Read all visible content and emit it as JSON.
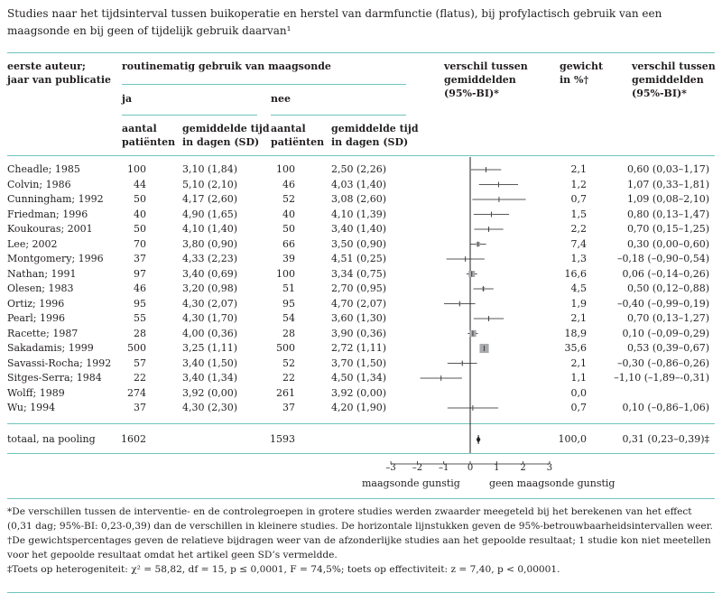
{
  "title": "Studies naar het tijdsinterval tussen buikoperatie en herstel van darmfunctie (flatus), bij profylactisch gebruik van een maagsonde en bij geen of tijdelijk gebruik daarvan¹",
  "headers": {
    "author": "eerste auteur;",
    "author2": "jaar van publicatie",
    "group": "routinematig gebruik van maagsonde",
    "ja": "ja",
    "nee": "nee",
    "n1": "aantal",
    "n2": "patiënten",
    "t1": "gemiddelde tijd",
    "t2": "in dagen (SD)",
    "diff1": "verschil tussen",
    "diff2": "gemiddelden",
    "diff3": "(95%-BI)*",
    "w1": "gewicht",
    "w2": "in %†"
  },
  "rows": [
    {
      "study": "Cheadle; 1985",
      "ja_n": "100",
      "ja_mean": "3,10 (1,84)",
      "nee_n": "100",
      "nee_mean": "2,50 (2,26)",
      "weight": "2,1",
      "ci_text": "0,60 (0,03–1,17)"
    },
    {
      "study": "Colvin; 1986",
      "ja_n": "44",
      "ja_mean": "5,10 (2,10)",
      "nee_n": "46",
      "nee_mean": "4,03 (1,40)",
      "weight": "1,2",
      "ci_text": "1,07 (0,33–1,81)"
    },
    {
      "study": "Cunningham; 1992",
      "ja_n": "50",
      "ja_mean": "4,17 (2,60)",
      "nee_n": "52",
      "nee_mean": "3,08 (2,60)",
      "weight": "0,7",
      "ci_text": "1,09 (0,08–2,10)"
    },
    {
      "study": "Friedman; 1996",
      "ja_n": "40",
      "ja_mean": "4,90 (1,65)",
      "nee_n": "40",
      "nee_mean": "4,10 (1,39)",
      "weight": "1,5",
      "ci_text": "0,80 (0,13–1,47)"
    },
    {
      "study": "Koukouras; 2001",
      "ja_n": "50",
      "ja_mean": "4,10 (1,40)",
      "nee_n": "50",
      "nee_mean": "3,40 (1,40)",
      "weight": "2,2",
      "ci_text": "0,70 (0,15–1,25)"
    },
    {
      "study": "Lee; 2002",
      "ja_n": "70",
      "ja_mean": "3,80 (0,90)",
      "nee_n": "66",
      "nee_mean": "3,50 (0,90)",
      "weight": "7,4",
      "ci_text": "0,30 (0,00–0,60)"
    },
    {
      "study": "Montgomery; 1996",
      "ja_n": "37",
      "ja_mean": "4,33 (2,23)",
      "nee_n": "39",
      "nee_mean": "4,51 (0,25)",
      "weight": "1,3",
      "ci_text": "–0,18 (–0,90–0,54)"
    },
    {
      "study": "Nathan; 1991",
      "ja_n": "97",
      "ja_mean": "3,40 (0,69)",
      "nee_n": "100",
      "nee_mean": "3,34 (0,75)",
      "weight": "16,6",
      "ci_text": "0,06 (–0,14–0,26)"
    },
    {
      "study": "Olesen; 1983",
      "ja_n": "46",
      "ja_mean": "3,20 (0,98)",
      "nee_n": "51",
      "nee_mean": "2,70 (0,95)",
      "weight": "4,5",
      "ci_text": "0,50 (0,12–0,88)"
    },
    {
      "study": "Ortiz; 1996",
      "ja_n": "95",
      "ja_mean": "4,30 (2,07)",
      "nee_n": "95",
      "nee_mean": "4,70 (2,07)",
      "weight": "1,9",
      "ci_text": "–0,40 (–0,99–0,19)"
    },
    {
      "study": "Pearl; 1996",
      "ja_n": "55",
      "ja_mean": "4,30 (1,70)",
      "nee_n": "54",
      "nee_mean": "3,60 (1,30)",
      "weight": "2,1",
      "ci_text": "0,70 (0,13–1,27)"
    },
    {
      "study": "Racette; 1987",
      "ja_n": "28",
      "ja_mean": "4,00 (0,36)",
      "nee_n": "28",
      "nee_mean": "3,90 (0,36)",
      "weight": "18,9",
      "ci_text": "0,10 (–0,09–0,29)"
    },
    {
      "study": "Sakadamis; 1999",
      "ja_n": "500",
      "ja_mean": "3,25 (1,11)",
      "nee_n": "500",
      "nee_mean": "2,72 (1,11)",
      "weight": "35,6",
      "ci_text": "0,53 (0,39–0,67)"
    },
    {
      "study": "Savassi-Rocha; 1992",
      "ja_n": "57",
      "ja_mean": "3,40 (1,50)",
      "nee_n": "52",
      "nee_mean": "3,70 (1,50)",
      "weight": "2,1",
      "ci_text": "–0,30 (–0,86–0,26)"
    },
    {
      "study": "Sitges-Serra; 1984",
      "ja_n": "22",
      "ja_mean": "3,40 (1,34)",
      "nee_n": "22",
      "nee_mean": "4,50 (1,34)",
      "weight": "1,1",
      "ci_text": "–1,10 (–1,89–-0,31)"
    },
    {
      "study": "Wolff; 1989",
      "ja_n": "274",
      "ja_mean": "3,92 (0,00)",
      "nee_n": "261",
      "nee_mean": "3,92 (0,00)",
      "weight": "0,0",
      "ci_text": ""
    },
    {
      "study": "Wu; 1994",
      "ja_n": "37",
      "ja_mean": "4,30 (2,30)",
      "nee_n": "37",
      "nee_mean": "4,20 (1,90)",
      "weight": "0,7",
      "ci_text": "0,10 (–0,86–1,06)"
    }
  ],
  "total": {
    "label": "totaal, na pooling",
    "ja_n": "1602",
    "nee_n": "1593",
    "weight": "100,0",
    "ci_text": "0,31 (0,23–0,39)‡"
  },
  "axis": {
    "ticks": [
      "–3",
      "–2",
      "–1",
      "0",
      "1",
      "2",
      "3"
    ],
    "label_left": "maagsonde gunstig",
    "label_right": "geen maagsonde gunstig"
  },
  "chart_data": {
    "type": "forest",
    "xlim": [
      -3,
      3
    ],
    "studies": [
      {
        "name": "Cheadle; 1985",
        "est": 0.6,
        "lo": 0.03,
        "hi": 1.17,
        "weight": 2.1
      },
      {
        "name": "Colvin; 1986",
        "est": 1.07,
        "lo": 0.33,
        "hi": 1.81,
        "weight": 1.2
      },
      {
        "name": "Cunningham; 1992",
        "est": 1.09,
        "lo": 0.08,
        "hi": 2.1,
        "weight": 0.7
      },
      {
        "name": "Friedman; 1996",
        "est": 0.8,
        "lo": 0.13,
        "hi": 1.47,
        "weight": 1.5
      },
      {
        "name": "Koukouras; 2001",
        "est": 0.7,
        "lo": 0.15,
        "hi": 1.25,
        "weight": 2.2
      },
      {
        "name": "Lee; 2002",
        "est": 0.3,
        "lo": 0.0,
        "hi": 0.6,
        "weight": 7.4
      },
      {
        "name": "Montgomery; 1996",
        "est": -0.18,
        "lo": -0.9,
        "hi": 0.54,
        "weight": 1.3
      },
      {
        "name": "Nathan; 1991",
        "est": 0.06,
        "lo": -0.14,
        "hi": 0.26,
        "weight": 16.6
      },
      {
        "name": "Olesen; 1983",
        "est": 0.5,
        "lo": 0.12,
        "hi": 0.88,
        "weight": 4.5
      },
      {
        "name": "Ortiz; 1996",
        "est": -0.4,
        "lo": -0.99,
        "hi": 0.19,
        "weight": 1.9
      },
      {
        "name": "Pearl; 1996",
        "est": 0.7,
        "lo": 0.13,
        "hi": 1.27,
        "weight": 2.1
      },
      {
        "name": "Racette; 1987",
        "est": 0.1,
        "lo": -0.09,
        "hi": 0.29,
        "weight": 18.9
      },
      {
        "name": "Sakadamis; 1999",
        "est": 0.53,
        "lo": 0.39,
        "hi": 0.67,
        "weight": 35.6
      },
      {
        "name": "Savassi-Rocha; 1992",
        "est": -0.3,
        "lo": -0.86,
        "hi": 0.26,
        "weight": 2.1
      },
      {
        "name": "Sitges-Serra; 1984",
        "est": -1.1,
        "lo": -1.89,
        "hi": -0.31,
        "weight": 1.1
      },
      {
        "name": "Wolff; 1989",
        "est": null,
        "lo": null,
        "hi": null,
        "weight": 0.0
      },
      {
        "name": "Wu; 1994",
        "est": 0.1,
        "lo": -0.86,
        "hi": 1.06,
        "weight": 0.7
      }
    ],
    "pooled": {
      "est": 0.31,
      "lo": 0.23,
      "hi": 0.39
    }
  },
  "footnotes": [
    "*De verschillen tussen de interventie- en de controlegroepen in grotere studies werden zwaarder meegeteld bij het berekenen van het effect (0,31 dag; 95%-BI: 0,23-0,39) dan de verschillen in kleinere studies. De horizontale lijnstukken geven de 95%-betrouwbaarheidsintervallen weer.",
    "†De gewichtspercentages geven de relatieve bijdragen weer van de afzonderlijke studies aan het gepoolde resultaat; 1 studie kon niet meetellen voor het gepoolde resultaat omdat het artikel geen SD’s vermeldde.",
    "‡Toets op heterogeniteit: χ² = 58,82, df = 15, p ≤ 0,0001, F = 74,5%; toets op effectiviteit: z = 7,40, p < 0,00001."
  ]
}
